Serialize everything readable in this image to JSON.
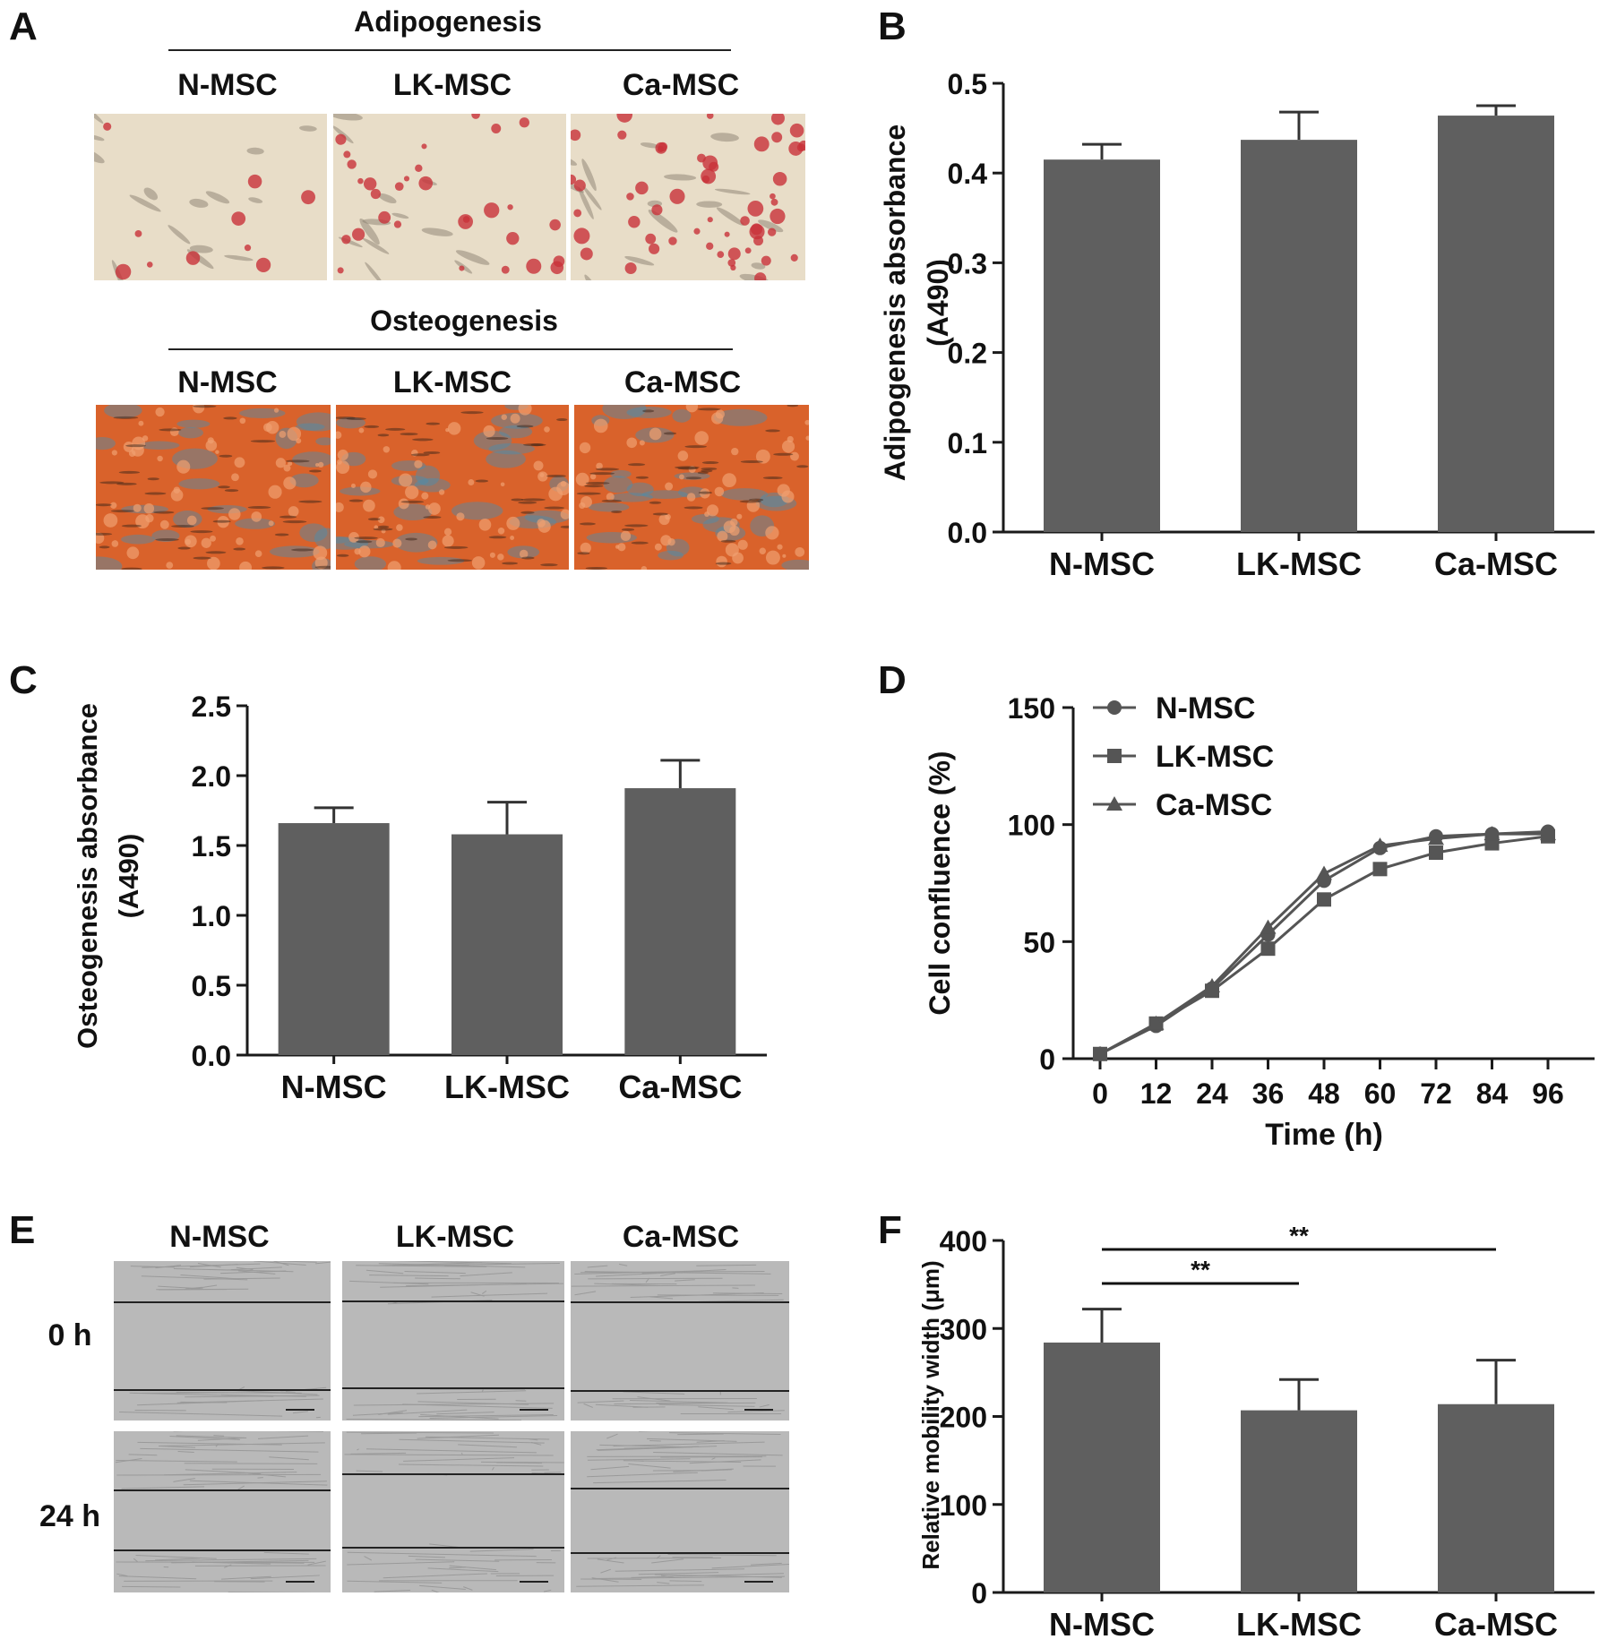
{
  "panels": {
    "a": "A",
    "b": "B",
    "c": "C",
    "d": "D",
    "e": "E",
    "f": "F"
  },
  "panel_a": {
    "adipo_title": "Adipogenesis",
    "osteo_title": "Osteogenesis",
    "groups": [
      "N-MSC",
      "LK-MSC",
      "Ca-MSC"
    ]
  },
  "panel_e": {
    "groups": [
      "N-MSC",
      "LK-MSC",
      "Ca-MSC"
    ],
    "rows": [
      "0 h",
      "24 h"
    ]
  },
  "colors": {
    "bar": "#5f5f5f",
    "axis": "#1a1a1a",
    "adipo_bg": "#e8ddc8",
    "adipo_stain": "#c8323a",
    "osteo_bg": "#d9622b",
    "osteo_blue": "#4a8fb0",
    "scratch_bg": "#b9b9b9"
  },
  "chart_data": [
    {
      "id": "B",
      "type": "bar",
      "categories": [
        "N-MSC",
        "LK-MSC",
        "Ca-MSC"
      ],
      "values": [
        0.415,
        0.437,
        0.464
      ],
      "errors": [
        0.017,
        0.031,
        0.011
      ],
      "ylabel": [
        "Adipogenesis absorbance",
        "(A490)"
      ],
      "ylim": [
        0,
        0.5
      ],
      "yticks": [
        "0.0",
        "0.1",
        "0.2",
        "0.3",
        "0.4",
        "0.5"
      ]
    },
    {
      "id": "C",
      "type": "bar",
      "categories": [
        "N-MSC",
        "LK-MSC",
        "Ca-MSC"
      ],
      "values": [
        1.66,
        1.58,
        1.91
      ],
      "errors": [
        0.11,
        0.23,
        0.2
      ],
      "ylabel": [
        "Osteogenesis absorbance",
        "(A490)"
      ],
      "ylim": [
        0,
        2.5
      ],
      "yticks": [
        "0.0",
        "0.5",
        "1.0",
        "1.5",
        "2.0",
        "2.5"
      ]
    },
    {
      "id": "D",
      "type": "line",
      "x": [
        0,
        12,
        24,
        36,
        48,
        60,
        72,
        84,
        96
      ],
      "xticks": [
        "0",
        "12",
        "24",
        "36",
        "48",
        "60",
        "72",
        "84",
        "96"
      ],
      "series": [
        {
          "name": "N-MSC",
          "marker": "circle",
          "values": [
            2,
            14,
            30,
            53,
            76,
            90,
            95,
            96,
            97
          ]
        },
        {
          "name": "LK-MSC",
          "marker": "square",
          "values": [
            2,
            15,
            29,
            47,
            68,
            81,
            88,
            92,
            95
          ]
        },
        {
          "name": "Ca-MSC",
          "marker": "triangle",
          "values": [
            2,
            15,
            31,
            56,
            79,
            91,
            94,
            96,
            96
          ]
        }
      ],
      "xlabel": "Time (h)",
      "ylabel": "Cell confluence  (%)",
      "ylim": [
        0,
        150
      ],
      "yticks": [
        "0",
        "50",
        "100",
        "150"
      ],
      "legend": "top-left"
    },
    {
      "id": "F",
      "type": "bar",
      "categories": [
        "N-MSC",
        "LK-MSC",
        "Ca-MSC"
      ],
      "values": [
        284,
        207,
        214
      ],
      "errors": [
        38,
        35,
        50
      ],
      "ylabel": [
        "Relative mobility width (μm)"
      ],
      "ylim": [
        0,
        400
      ],
      "yticks": [
        "0",
        "100",
        "200",
        "300",
        "400"
      ],
      "significance": [
        {
          "from": 0,
          "to": 2,
          "label": "**"
        },
        {
          "from": 0,
          "to": 1,
          "label": "**"
        }
      ]
    }
  ]
}
